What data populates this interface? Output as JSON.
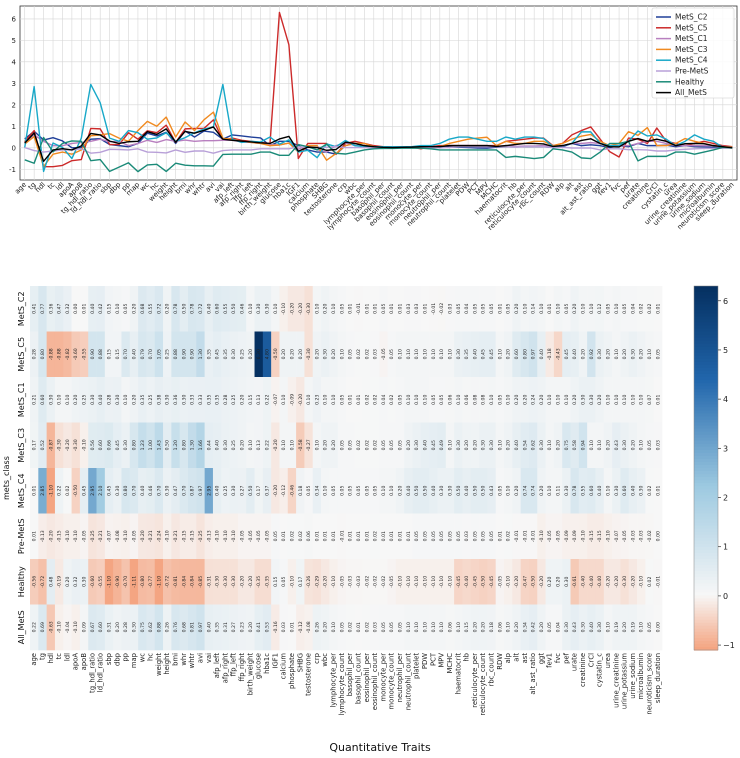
{
  "chart_data": [
    {
      "type": "line",
      "title": "",
      "ylim": [
        -1.5,
        6.6
      ],
      "yticks": [
        -1,
        0,
        1,
        2,
        3,
        4,
        5,
        6
      ],
      "grid": true,
      "legend_placement": "top-right",
      "x": [
        "age",
        "tg",
        "hdl",
        "tc",
        "ldl",
        "apoA",
        "apoB",
        "tg_hdl_ratio",
        "ld_hdl_ratio",
        "sbp",
        "dbp",
        "pp",
        "map",
        "wc",
        "hc",
        "weight",
        "height",
        "bmi",
        "whr",
        "whtr",
        "avi",
        "vai",
        "afp_left",
        "afp_right",
        "ffp_left",
        "ffp_right",
        "birth_weight",
        "glucose",
        "hba1c",
        "IGF1",
        "calcium",
        "phosphate",
        "SHBG",
        "testosterone",
        "crp",
        "wbc",
        "lymphocyte_per",
        "lymphocyte_count",
        "basophil_per",
        "basophil_count",
        "eosinophil_per",
        "eosinophil_count",
        "monocyte_per",
        "monocyte_count",
        "neutrophil_per",
        "neutrophil_count",
        "platelet",
        "PDW",
        "PCT",
        "MPV",
        "MCHC",
        "haematocrit",
        "hb",
        "reticulocyte_per",
        "reticulocyte_count",
        "rbc_count",
        "RDW",
        "alp",
        "alt",
        "ast",
        "alt_ast_ratio",
        "ggt",
        "fev1",
        "fvc",
        "pef",
        "urate",
        "creatinine",
        "CrCl",
        "cystatin_c",
        "urea",
        "urine_creatinine",
        "urine_potassium",
        "urine_sodium",
        "microalbumin",
        "neuroticism_score",
        "sleep_duration"
      ],
      "series": [
        {
          "name": "MetS_C2",
          "color": "#1f3f99",
          "values": [
            0.41,
            0.77,
            0.36,
            0.47,
            0.32,
            0.0,
            0.01,
            0.4,
            0.42,
            0.15,
            0.1,
            0.05,
            0.2,
            0.68,
            0.55,
            0.72,
            0.2,
            0.78,
            0.5,
            0.78,
            0.72,
            0.4,
            0.6,
            0.55,
            0.5,
            0.46,
            0.1,
            0.3,
            0.3,
            0.1,
            -0.1,
            -0.2,
            -0.2,
            -0.3,
            0.1,
            0.2,
            0.1,
            0.05,
            0.01,
            -0.01,
            0.01,
            0.01,
            0.05,
            0.01,
            0.01,
            0.03,
            0.03,
            0.01,
            -0.01,
            -0.02,
            0.03,
            0.05,
            0.04,
            0.05,
            0.05,
            0.05,
            0.01,
            0.05,
            0.2,
            0.1,
            0.14,
            0.1,
            0.01,
            0.1,
            0.05,
            0.2,
            0.1,
            0.1,
            0.12,
            0.05,
            0.1,
            0.05,
            0.04,
            0.02,
            0.02,
            0.01
          ]
        },
        {
          "name": "MetS_C5",
          "color": "#cc2a2a",
          "values": [
            0.28,
            0.8,
            -0.88,
            -0.88,
            -0.82,
            -0.6,
            -0.55,
            0.9,
            0.88,
            0.15,
            0.15,
            0.7,
            0.4,
            0.79,
            0.7,
            1.05,
            0.25,
            0.88,
            0.9,
            0.9,
            1.3,
            0.35,
            0.45,
            0.35,
            0.3,
            0.25,
            0.2,
            6.3,
            4.8,
            -0.5,
            0.2,
            0.2,
            0.2,
            -0.3,
            0.2,
            0.3,
            0.2,
            0.1,
            0.05,
            0.02,
            0.02,
            0.03,
            -0.05,
            0.05,
            0.1,
            0.1,
            0.1,
            0.1,
            0.1,
            0.1,
            0.1,
            0.3,
            0.35,
            0.4,
            0.45,
            0.45,
            0.1,
            0.2,
            0.6,
            0.8,
            0.97,
            0.4,
            -0.18,
            -0.43,
            0.45,
            0.4,
            0.2,
            0.92,
            0.3,
            0.2,
            0.1,
            0.2,
            0.3,
            0.2,
            0.1,
            0.05
          ]
        },
        {
          "name": "MetS_C1",
          "color": "#b87fbf",
          "values": [
            0.21,
            0.6,
            0.3,
            0.1,
            0.1,
            0.2,
            0.25,
            0.3,
            0.4,
            0.28,
            0.3,
            0.1,
            0.2,
            0.35,
            0.25,
            0.38,
            0.3,
            0.36,
            0.3,
            0.33,
            0.33,
            0.35,
            0.35,
            0.28,
            0.25,
            0.2,
            0.15,
            0.13,
            0.22,
            -0.07,
            0.1,
            -0.09,
            -0.2,
            0.1,
            0.23,
            0.1,
            0.1,
            0.05,
            0.01,
            0.01,
            0.02,
            0.02,
            0.04,
            0.02,
            0.05,
            0.1,
            0.1,
            0.1,
            0.05,
            0.05,
            0.06,
            0.1,
            0.06,
            0.08,
            0.08,
            0.1,
            0.05,
            0.1,
            0.2,
            0.2,
            0.24,
            0.2,
            0.1,
            0.1,
            0.1,
            0.2,
            0.3,
            0.3,
            0.2,
            0.1,
            0.1,
            0.1,
            0.1,
            0.1,
            0.07,
            0.01
          ]
        },
        {
          "name": "MetS_C3",
          "color": "#f08a20",
          "values": [
            0.17,
            0.52,
            -0.87,
            -0.3,
            -0.2,
            -0.3,
            -0.1,
            0.56,
            0.6,
            0.66,
            0.45,
            0.3,
            0.8,
            1.23,
            1.0,
            1.43,
            0.5,
            1.2,
            0.8,
            1.3,
            1.66,
            0.44,
            0.4,
            0.3,
            0.25,
            0.2,
            0.1,
            0.13,
            0.22,
            -0.2,
            0.1,
            0.1,
            -0.58,
            -0.27,
            0.1,
            0.2,
            0.2,
            0.05,
            0.05,
            0.02,
            0.02,
            0.02,
            0.05,
            0.05,
            0.05,
            0.2,
            0.3,
            0.4,
            0.45,
            0.49,
            0.1,
            0.3,
            0.2,
            0.2,
            0.3,
            0.3,
            0.1,
            0.2,
            0.4,
            0.54,
            0.62,
            0.3,
            0.1,
            0.2,
            0.75,
            0.58,
            0.94,
            0.1,
            0.1,
            0.2,
            0.43,
            0.3,
            0.2,
            0.1,
            0.05,
            0.03
          ]
        },
        {
          "name": "MetS_C4",
          "color": "#18a8c8",
          "values": [
            0.01,
            2.85,
            -1.1,
            0.22,
            0.02,
            -0.5,
            0.45,
            2.95,
            2.1,
            0.45,
            0.3,
            0.8,
            0.7,
            0.4,
            0.46,
            0.7,
            0.3,
            0.47,
            0.7,
            0.87,
            0.97,
            2.95,
            0.4,
            0.25,
            0.3,
            0.27,
            0.5,
            0.17,
            0.37,
            -0.2,
            -0.12,
            -0.46,
            0.18,
            0.05,
            0.34,
            0.1,
            0.05,
            0.05,
            0.05,
            0.05,
            0.05,
            0.05,
            0.1,
            0.1,
            0.2,
            0.4,
            0.5,
            0.5,
            0.4,
            0.3,
            0.3,
            0.5,
            0.4,
            0.5,
            0.5,
            0.43,
            0.05,
            0.1,
            0.2,
            0.74,
            0.74,
            0.2,
            0.1,
            0.11,
            0.3,
            0.78,
            0.55,
            0.6,
            0.4,
            0.1,
            0.3,
            0.6,
            0.4,
            0.3,
            0.02,
            0.01
          ]
        },
        {
          "name": "Pre-MetS",
          "color": "#b8a0d8",
          "values": [
            0.01,
            -0.13,
            -0.2,
            -0.15,
            -0.1,
            -0.1,
            -0.05,
            -0.25,
            -0.21,
            -0.07,
            -0.08,
            -0.1,
            -0.05,
            -0.2,
            -0.21,
            -0.24,
            -0.1,
            -0.21,
            -0.15,
            -0.15,
            -0.25,
            -0.13,
            -0.1,
            -0.1,
            -0.1,
            -0.05,
            -0.05,
            -0.05,
            -0.05,
            0.05,
            0.01,
            0.02,
            0.02,
            0.06,
            0.01,
            0.01,
            0.01,
            -0.01,
            0.01,
            0.01,
            0.01,
            0.02,
            0.01,
            0.01,
            0.01,
            0.01,
            0.05,
            0.05,
            0.05,
            0.05,
            0.05,
            0.05,
            0.03,
            0.05,
            0.05,
            0.05,
            0.01,
            0.02,
            -0.01,
            -0.01,
            -0.01,
            -0.1,
            -0.05,
            -0.05,
            -0.09,
            -0.09,
            -0.1,
            -0.15,
            -0.15,
            -0.1,
            -0.07,
            -0.05,
            -0.03,
            -0.03,
            -0.02,
            0.0
          ]
        },
        {
          "name": "Healthy",
          "color": "#1a8a78",
          "values": [
            -0.56,
            -0.72,
            0.48,
            -0.19,
            0.2,
            0.32,
            0.3,
            -0.6,
            -0.55,
            -1.1,
            -0.9,
            -0.7,
            -1.11,
            -0.8,
            -0.77,
            -1.1,
            -0.72,
            -0.81,
            -0.84,
            -0.84,
            -0.85,
            -0.31,
            -0.3,
            -0.3,
            -0.3,
            -0.2,
            -0.2,
            -0.35,
            -0.35,
            0.15,
            0.05,
            -0.1,
            0.17,
            -0.26,
            -0.29,
            -0.2,
            -0.1,
            -0.05,
            -0.03,
            -0.03,
            -0.02,
            -0.02,
            -0.02,
            -0.05,
            -0.1,
            -0.1,
            -0.1,
            -0.1,
            -0.1,
            -0.1,
            -0.1,
            -0.45,
            -0.4,
            -0.45,
            -0.5,
            -0.45,
            -0.05,
            -0.1,
            -0.2,
            -0.47,
            -0.5,
            -0.2,
            0.2,
            0.2,
            0.3,
            -0.61,
            -0.4,
            -0.4,
            -0.4,
            -0.2,
            -0.2,
            -0.3,
            -0.2,
            -0.1,
            0.02,
            -0.01
          ]
        },
        {
          "name": "All_MetS",
          "color": "#000000",
          "values": [
            0.22,
            0.69,
            -0.63,
            -0.1,
            -0.04,
            -0.1,
            0.09,
            0.67,
            0.6,
            0.31,
            0.2,
            0.28,
            0.3,
            0.75,
            0.62,
            0.88,
            0.26,
            0.76,
            0.68,
            0.81,
            0.97,
            0.4,
            0.35,
            0.31,
            0.27,
            0.23,
            0.2,
            0.41,
            0.53,
            -0.16,
            0.03,
            0.01,
            -0.12,
            -0.08,
            0.26,
            0.2,
            0.1,
            0.05,
            0.02,
            0.01,
            0.02,
            0.03,
            0.05,
            0.05,
            0.05,
            0.1,
            0.1,
            0.1,
            0.1,
            0.1,
            0.06,
            0.1,
            0.15,
            0.2,
            0.2,
            0.18,
            0.06,
            0.1,
            0.2,
            0.34,
            0.42,
            0.2,
            0.05,
            0.04,
            0.3,
            0.43,
            0.3,
            0.4,
            0.3,
            0.1,
            0.19,
            0.2,
            0.19,
            0.1,
            0.05,
            0.0
          ]
        }
      ]
    },
    {
      "type": "heatmap",
      "title": "",
      "xlabel": "Quantitative Traits",
      "ylabel": "mets_class",
      "rows": [
        "MetS_C2",
        "MetS_C5",
        "MetS_C1",
        "MetS_C3",
        "MetS_C4",
        "Pre-MetS",
        "Healthy",
        "All_MetS"
      ],
      "colorbar": {
        "min": -1.1,
        "max": 6.3,
        "ticks": [
          6,
          5,
          4,
          3,
          2,
          1,
          0,
          -1
        ],
        "low_color": "#f4a582",
        "mid_color": "#f7f7f7",
        "high_color": "#053061"
      },
      "columns_source": "same traits as line chart x",
      "values_source": "same per-class values as line chart series"
    }
  ]
}
